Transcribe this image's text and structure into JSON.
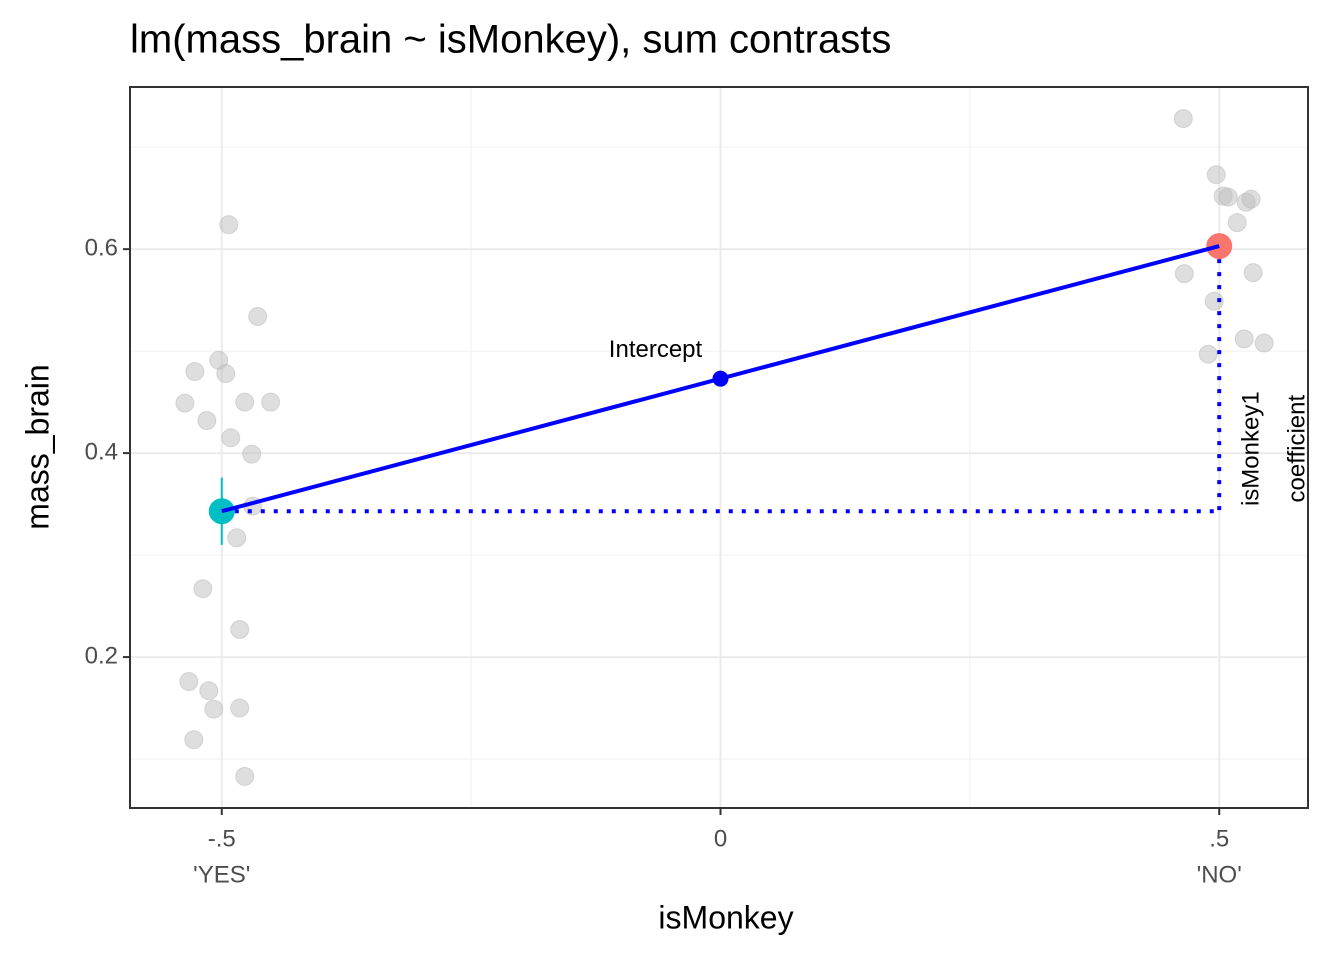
{
  "chart_data": {
    "type": "scatter",
    "title": "lm(mass_brain ~ isMonkey), sum contrasts",
    "x_label": "isMonkey",
    "y_label": "mass_brain",
    "xlim": [
      -0.592,
      0.589
    ],
    "ylim": [
      0.052,
      0.759
    ],
    "xticks": [
      {
        "value": -0.5,
        "label": "-.5"
      },
      0,
      {
        "value": 0.5,
        "label": ".5"
      }
    ],
    "x_level_labels": [
      {
        "value": -0.5,
        "label": "'YES'"
      },
      {
        "value": 0.5,
        "label": "'NO'"
      }
    ],
    "yticks": [
      0.2,
      0.4,
      0.6
    ],
    "xminor": [
      -0.25,
      0.25
    ],
    "yminor": [
      0.1,
      0.3,
      0.5,
      0.7
    ],
    "grid": true,
    "points": {
      "color": "#bdbdbd",
      "x": [
        -0.493,
        -0.464,
        -0.503,
        -0.527,
        -0.496,
        -0.537,
        -0.477,
        -0.451,
        -0.515,
        -0.491,
        -0.47,
        -0.469,
        -0.485,
        -0.519,
        -0.482,
        -0.533,
        -0.513,
        -0.508,
        -0.482,
        -0.528,
        -0.477,
        0.464,
        0.497,
        0.504,
        0.509,
        0.527,
        0.532,
        0.518,
        0.465,
        0.534,
        0.495,
        0.525,
        0.545,
        0.489
      ],
      "y": [
        0.624,
        0.534,
        0.491,
        0.48,
        0.478,
        0.449,
        0.45,
        0.45,
        0.432,
        0.415,
        0.399,
        0.348,
        0.317,
        0.267,
        0.227,
        0.176,
        0.167,
        0.149,
        0.15,
        0.119,
        0.083,
        0.728,
        0.673,
        0.652,
        0.651,
        0.646,
        0.649,
        0.626,
        0.576,
        0.577,
        0.549,
        0.512,
        0.508,
        0.497
      ]
    },
    "means": {
      "x": [
        -0.5,
        0.5
      ],
      "y": [
        0.343,
        0.603
      ],
      "colors": [
        "#00BFC4",
        "#F8766D"
      ]
    },
    "errorbar": {
      "x": -0.5,
      "low": 0.31,
      "high": 0.376,
      "color": "#00BFC4"
    },
    "line_color": "#0000FF",
    "intercept": {
      "x": 0,
      "y": 0.473,
      "label": "Intercept"
    },
    "coefficient_label": [
      "isMonkey1",
      "coefficient"
    ]
  }
}
